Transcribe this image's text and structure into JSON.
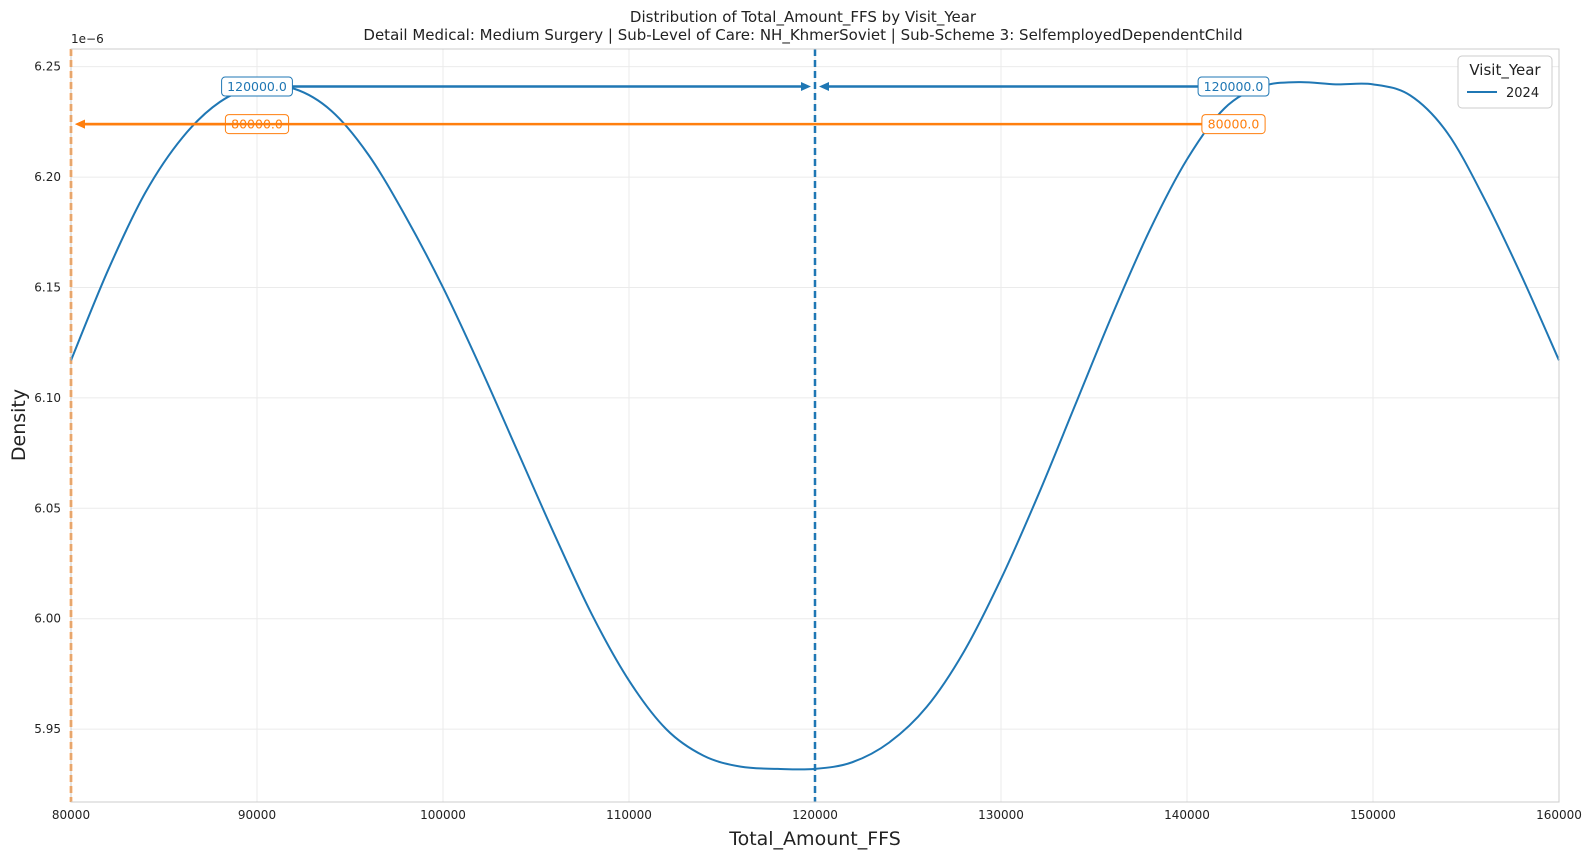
{
  "chart_data": {
    "type": "line",
    "title": "Distribution of Total_Amount_FFS by Visit_Year",
    "subtitle": "Detail Medical: Medium Surgery | Sub-Level of Care: NH_KhmerSoviet | Sub-Scheme 3: SelfemployedDependentChild",
    "xlabel": "Total_Amount_FFS",
    "ylabel": "Density",
    "y_scale_label": "1e−6",
    "xlim": [
      80000,
      160000
    ],
    "ylim": [
      5.917,
      6.258
    ],
    "x_ticks": [
      80000,
      90000,
      100000,
      110000,
      120000,
      130000,
      140000,
      150000,
      160000
    ],
    "x_tick_labels": [
      "80000",
      "90000",
      "100000",
      "110000",
      "120000",
      "130000",
      "140000",
      "150000",
      "160000"
    ],
    "y_ticks": [
      5.95,
      6.0,
      6.05,
      6.1,
      6.15,
      6.2,
      6.25
    ],
    "y_tick_labels": [
      "5.95",
      "6.00",
      "6.05",
      "6.10",
      "6.15",
      "6.20",
      "6.25"
    ],
    "grid": true,
    "legend": {
      "title": "Visit_Year",
      "placement": "top-right"
    },
    "series": [
      {
        "name": "2024",
        "color": "#1f77b4",
        "x": [
          80000,
          82000,
          84000,
          86000,
          88000,
          90000,
          92000,
          94000,
          96000,
          98000,
          100000,
          102000,
          104000,
          106000,
          108000,
          110000,
          112000,
          114000,
          116000,
          118000,
          120000,
          122000,
          124000,
          126000,
          128000,
          130000,
          132000,
          134000,
          136000,
          138000,
          140000,
          142000,
          144000,
          146000,
          148000,
          150000,
          152000,
          154000,
          156000,
          158000,
          160000
        ],
        "y": [
          6.117,
          6.158,
          6.193,
          6.218,
          6.234,
          6.241,
          6.24,
          6.23,
          6.21,
          6.182,
          6.15,
          6.114,
          6.076,
          6.038,
          6.002,
          5.972,
          5.95,
          5.938,
          5.933,
          5.932,
          5.932,
          5.935,
          5.944,
          5.96,
          5.985,
          6.018,
          6.056,
          6.097,
          6.138,
          6.176,
          6.208,
          6.231,
          6.241,
          6.243,
          6.242,
          6.242,
          6.237,
          6.22,
          6.19,
          6.155,
          6.117
        ]
      }
    ],
    "reference_lines": [
      {
        "orientation": "vertical",
        "x": 120000,
        "color": "#1f77b4",
        "style": "dashed"
      },
      {
        "orientation": "vertical",
        "x": 80000,
        "color": "#ff7f0e",
        "style": "dashed"
      }
    ],
    "annotations": [
      {
        "label": "120000.0",
        "color": "#1f77b4",
        "y": 6.241,
        "text_x": 90000,
        "arrow_from_x": 91500,
        "arrow_to_x": 120000
      },
      {
        "label": "120000.0",
        "color": "#1f77b4",
        "y": 6.241,
        "text_x": 142500,
        "arrow_from_x": 140800,
        "arrow_to_x": 120000
      },
      {
        "label": "80000.0",
        "color": "#ff7f0e",
        "y": 6.224,
        "text_x": 90000,
        "arrow_from_x": 91500,
        "arrow_to_x": 80000
      },
      {
        "label": "80000.0",
        "color": "#ff7f0e",
        "y": 6.224,
        "text_x": 142500,
        "arrow_from_x": 141000,
        "arrow_to_x": 80000
      }
    ]
  }
}
